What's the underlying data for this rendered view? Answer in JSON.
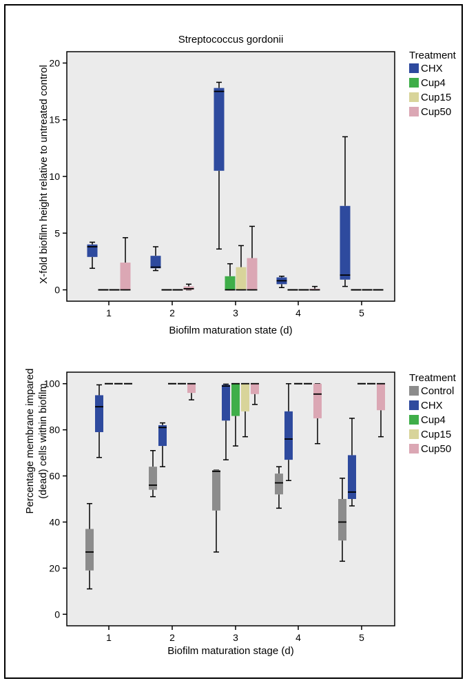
{
  "charts": [
    {
      "title": "Streptococcus gordonii",
      "xlabel": "Biofilm maturation state (d)",
      "ylabel": "X-fold biofilm height relative to untreated control",
      "yticks": [
        "0",
        "5",
        "10",
        "15",
        "20"
      ],
      "xticks": [
        "1",
        "2",
        "3",
        "4",
        "5"
      ],
      "legend_title": "Treatment",
      "legend": [
        "CHX",
        "Cup4",
        "Cup15",
        "Cup50"
      ]
    },
    {
      "title": "",
      "xlabel": "Biofilm maturation stage (d)",
      "ylabel_line1": "Percentage membrane impared",
      "ylabel_line2": "(dead) cells within biofilm",
      "yticks": [
        "0",
        "20",
        "40",
        "60",
        "80",
        "100"
      ],
      "xticks": [
        "1",
        "2",
        "3",
        "4",
        "5"
      ],
      "legend_title": "Treatment",
      "legend": [
        "Control",
        "CHX",
        "Cup4",
        "Cup15",
        "Cup50"
      ]
    }
  ],
  "colors": {
    "Control": "#8c8c8c",
    "CHX": "#2e4a9e",
    "Cup4": "#3fae49",
    "Cup15": "#d8d49a",
    "Cup50": "#dba7b4",
    "plot_bg": "#ebebeb"
  },
  "chart_data": [
    {
      "type": "boxplot",
      "title": "Streptococcus gordonii",
      "xlabel": "Biofilm maturation state (d)",
      "ylabel": "X-fold biofilm height relative to untreated control",
      "categories": [
        "1",
        "2",
        "3",
        "4",
        "5"
      ],
      "ylim": [
        -1,
        21
      ],
      "grid": false,
      "legend_placement": "right",
      "series": [
        {
          "name": "CHX",
          "boxes": [
            {
              "min": 1.9,
              "q1": 2.9,
              "median": 3.8,
              "q3": 4.0,
              "max": 4.2
            },
            {
              "min": 1.7,
              "q1": 1.9,
              "median": 2.0,
              "q3": 3.0,
              "max": 3.8
            },
            {
              "min": 3.6,
              "q1": 10.5,
              "median": 17.5,
              "q3": 17.8,
              "max": 18.3
            },
            {
              "min": 0.2,
              "q1": 0.5,
              "median": 0.8,
              "q3": 1.1,
              "max": 1.2
            },
            {
              "min": 0.3,
              "q1": 0.9,
              "median": 1.3,
              "q3": 7.4,
              "max": 13.5
            }
          ]
        },
        {
          "name": "Cup4",
          "boxes": [
            {
              "min": 0,
              "q1": 0,
              "median": 0,
              "q3": 0,
              "max": 0
            },
            {
              "min": 0,
              "q1": 0,
              "median": 0,
              "q3": 0,
              "max": 0
            },
            {
              "min": 0,
              "q1": 0,
              "median": 0,
              "q3": 1.2,
              "max": 2.3
            },
            {
              "min": 0,
              "q1": 0,
              "median": 0,
              "q3": 0,
              "max": 0
            },
            {
              "min": 0,
              "q1": 0,
              "median": 0,
              "q3": 0,
              "max": 0
            }
          ]
        },
        {
          "name": "Cup15",
          "boxes": [
            {
              "min": 0,
              "q1": 0,
              "median": 0,
              "q3": 0,
              "max": 0
            },
            {
              "min": 0,
              "q1": 0,
              "median": 0,
              "q3": 0,
              "max": 0
            },
            {
              "min": 0,
              "q1": 0,
              "median": 0,
              "q3": 2.0,
              "max": 3.9
            },
            {
              "min": 0,
              "q1": 0,
              "median": 0,
              "q3": 0,
              "max": 0
            },
            {
              "min": 0,
              "q1": 0,
              "median": 0,
              "q3": 0,
              "max": 0
            }
          ]
        },
        {
          "name": "Cup50",
          "boxes": [
            {
              "min": 0,
              "q1": 0,
              "median": 0,
              "q3": 2.4,
              "max": 4.6
            },
            {
              "min": 0,
              "q1": 0,
              "median": 0.1,
              "q3": 0.3,
              "max": 0.5
            },
            {
              "min": 0,
              "q1": 0,
              "median": 0,
              "q3": 2.8,
              "max": 5.6
            },
            {
              "min": 0,
              "q1": 0,
              "median": 0,
              "q3": 0.1,
              "max": 0.3
            },
            {
              "min": 0,
              "q1": 0,
              "median": 0,
              "q3": 0,
              "max": 0
            }
          ]
        }
      ]
    },
    {
      "type": "boxplot",
      "title": "",
      "xlabel": "Biofilm maturation stage (d)",
      "ylabel": "Percentage membrane impared (dead) cells within biofilm",
      "categories": [
        "1",
        "2",
        "3",
        "4",
        "5"
      ],
      "ylim": [
        -5,
        105
      ],
      "grid": false,
      "legend_placement": "right",
      "series": [
        {
          "name": "Control",
          "boxes": [
            {
              "min": 11,
              "q1": 19,
              "median": 27,
              "q3": 37,
              "max": 48
            },
            {
              "min": 51,
              "q1": 54,
              "median": 56,
              "q3": 64,
              "max": 71
            },
            {
              "min": 27,
              "q1": 45,
              "median": 62,
              "q3": 62.5,
              "max": 62.5
            },
            {
              "min": 46,
              "q1": 52,
              "median": 57,
              "q3": 61,
              "max": 64
            },
            {
              "min": 23,
              "q1": 32,
              "median": 40,
              "q3": 50,
              "max": 59
            }
          ]
        },
        {
          "name": "CHX",
          "boxes": [
            {
              "min": 68,
              "q1": 79,
              "median": 90,
              "q3": 95,
              "max": 99.5
            },
            {
              "min": 64,
              "q1": 73,
              "median": 81,
              "q3": 82,
              "max": 83
            },
            {
              "min": 67,
              "q1": 84,
              "median": 99,
              "q3": 99.5,
              "max": 99.8
            },
            {
              "min": 58,
              "q1": 67,
              "median": 76,
              "q3": 88,
              "max": 100
            },
            {
              "min": 47,
              "q1": 50,
              "median": 53,
              "q3": 69,
              "max": 85
            }
          ]
        },
        {
          "name": "Cup4",
          "boxes": [
            {
              "min": 100,
              "q1": 100,
              "median": 100,
              "q3": 100,
              "max": 100
            },
            {
              "min": 100,
              "q1": 100,
              "median": 100,
              "q3": 100,
              "max": 100
            },
            {
              "min": 73,
              "q1": 86,
              "median": 100,
              "q3": 100,
              "max": 100
            },
            {
              "min": 100,
              "q1": 100,
              "median": 100,
              "q3": 100,
              "max": 100
            },
            {
              "min": 100,
              "q1": 100,
              "median": 100,
              "q3": 100,
              "max": 100
            }
          ]
        },
        {
          "name": "Cup15",
          "boxes": [
            {
              "min": 100,
              "q1": 100,
              "median": 100,
              "q3": 100,
              "max": 100
            },
            {
              "min": 100,
              "q1": 100,
              "median": 100,
              "q3": 100,
              "max": 100
            },
            {
              "min": 77,
              "q1": 88,
              "median": 100,
              "q3": 100,
              "max": 100
            },
            {
              "min": 100,
              "q1": 100,
              "median": 100,
              "q3": 100,
              "max": 100
            },
            {
              "min": 100,
              "q1": 100,
              "median": 100,
              "q3": 100,
              "max": 100
            }
          ]
        },
        {
          "name": "Cup50",
          "boxes": [
            {
              "min": 100,
              "q1": 100,
              "median": 100,
              "q3": 100,
              "max": 100
            },
            {
              "min": 93,
              "q1": 96,
              "median": 100,
              "q3": 100,
              "max": 100
            },
            {
              "min": 91,
              "q1": 95.5,
              "median": 100,
              "q3": 100,
              "max": 100
            },
            {
              "min": 74,
              "q1": 85,
              "median": 95.5,
              "q3": 100,
              "max": 100
            },
            {
              "min": 77,
              "q1": 88.5,
              "median": 100,
              "q3": 100,
              "max": 100
            }
          ]
        }
      ]
    }
  ]
}
